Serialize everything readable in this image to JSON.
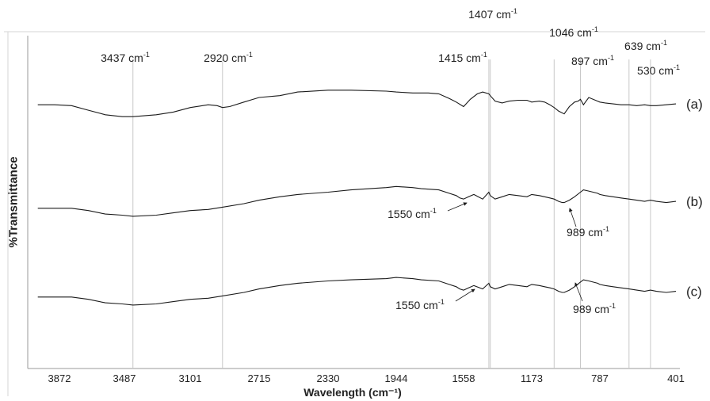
{
  "chart_data": {
    "type": "line",
    "title": "",
    "xlabel": "Wavelength (cm⁻¹)",
    "ylabel": "%Transmittance",
    "x_ticks": [
      "3872",
      "3487",
      "3101",
      "2715",
      "2330",
      "1944",
      "1558",
      "1173",
      "787",
      "401"
    ],
    "xlim": [
      4000,
      350
    ],
    "grid": false,
    "peak_lines": [
      3437,
      2920,
      1415,
      1407,
      1046,
      897,
      639,
      530
    ],
    "peak_labels": [
      {
        "text": "3437 cm-1",
        "at": 3437
      },
      {
        "text": "2920 cm-1",
        "at": 2920
      },
      {
        "text": "1415 cm-1",
        "at": 1415
      },
      {
        "text": "1407 cm-1",
        "at": 1407
      },
      {
        "text": "1046 cm-1",
        "at": 1046
      },
      {
        "text": "897 cm-1",
        "at": 897
      },
      {
        "text": "639 cm-1",
        "at": 639
      },
      {
        "text": "530 cm-1",
        "at": 530
      }
    ],
    "annotations": [
      {
        "text": "1550 cm-1",
        "series": "(b)",
        "at": 1550
      },
      {
        "text": "989 cm-1",
        "series": "(b)",
        "at": 989
      },
      {
        "text": "1550 cm-1",
        "series": "(c)",
        "at": 1550
      },
      {
        "text": "989 cm-1",
        "series": "(c)",
        "at": 989
      }
    ],
    "series": [
      {
        "name": "(a)",
        "x": [
          4000,
          3900,
          3800,
          3700,
          3600,
          3500,
          3437,
          3300,
          3200,
          3100,
          3000,
          2950,
          2920,
          2880,
          2800,
          2715,
          2600,
          2500,
          2330,
          2200,
          2000,
          1944,
          1850,
          1760,
          1700,
          1640,
          1600,
          1558,
          1520,
          1480,
          1450,
          1415,
          1407,
          1380,
          1340,
          1300,
          1250,
          1200,
          1173,
          1130,
          1100,
          1070,
          1046,
          1020,
          989,
          960,
          930,
          910,
          897,
          880,
          850,
          800,
          787,
          760,
          720,
          680,
          639,
          600,
          560,
          530,
          500,
          450,
          401
        ],
        "y": [
          72,
          72,
          71,
          66,
          61,
          59,
          59,
          61,
          64,
          69,
          72,
          71,
          69,
          70,
          75,
          80,
          82,
          86,
          88,
          88,
          87,
          86,
          85,
          85,
          84,
          79,
          75,
          70,
          78,
          84,
          86,
          84,
          82,
          76,
          74,
          76,
          77,
          77,
          75,
          76,
          75,
          72,
          69,
          65,
          62,
          70,
          75,
          76,
          78,
          72,
          80,
          76,
          75,
          74,
          73,
          72,
          72,
          71,
          72,
          71,
          71,
          72,
          73
        ]
      },
      {
        "name": "(b)",
        "x": [
          4000,
          3900,
          3800,
          3700,
          3600,
          3500,
          3437,
          3300,
          3200,
          3100,
          3000,
          2920,
          2800,
          2715,
          2600,
          2500,
          2330,
          2200,
          2000,
          1944,
          1850,
          1800,
          1700,
          1640,
          1600,
          1580,
          1558,
          1530,
          1500,
          1450,
          1415,
          1407,
          1380,
          1340,
          1300,
          1250,
          1200,
          1173,
          1130,
          1100,
          1070,
          1046,
          1020,
          1000,
          989,
          960,
          930,
          897,
          880,
          850,
          800,
          787,
          760,
          720,
          680,
          639,
          600,
          560,
          530,
          500,
          450,
          401
        ],
        "y": [
          36,
          36,
          36,
          34,
          31,
          30,
          29,
          30,
          32,
          34,
          35,
          37,
          40,
          43,
          46,
          48,
          50,
          52,
          54,
          55,
          54,
          53,
          52,
          49,
          47,
          45,
          44,
          46,
          48,
          44,
          50,
          47,
          44,
          46,
          48,
          47,
          46,
          48,
          47,
          46,
          45,
          44,
          42,
          41,
          41,
          43,
          46,
          50,
          52,
          51,
          49,
          48,
          47,
          46,
          45,
          44,
          43,
          42,
          43,
          42,
          41,
          42
        ]
      },
      {
        "name": "(c)",
        "x": [
          4000,
          3900,
          3800,
          3700,
          3600,
          3500,
          3437,
          3300,
          3200,
          3100,
          3000,
          2920,
          2800,
          2715,
          2600,
          2500,
          2330,
          2200,
          2000,
          1944,
          1850,
          1800,
          1700,
          1640,
          1600,
          1580,
          1558,
          1530,
          1500,
          1450,
          1415,
          1407,
          1380,
          1340,
          1300,
          1250,
          1200,
          1173,
          1130,
          1100,
          1070,
          1046,
          1020,
          1000,
          989,
          960,
          930,
          897,
          880,
          850,
          800,
          787,
          760,
          720,
          680,
          639,
          600,
          560,
          530,
          500,
          450,
          401
        ],
        "y": [
          36,
          36,
          36,
          34,
          31,
          30,
          29,
          30,
          32,
          34,
          35,
          37,
          40,
          43,
          46,
          48,
          50,
          51,
          52,
          53,
          52,
          51,
          50,
          47,
          45,
          43,
          42,
          44,
          46,
          43,
          48,
          45,
          43,
          45,
          47,
          46,
          45,
          47,
          46,
          45,
          44,
          43,
          41,
          40,
          40,
          42,
          45,
          49,
          51,
          50,
          48,
          47,
          46,
          45,
          44,
          43,
          42,
          41,
          42,
          41,
          40,
          41
        ]
      }
    ]
  }
}
